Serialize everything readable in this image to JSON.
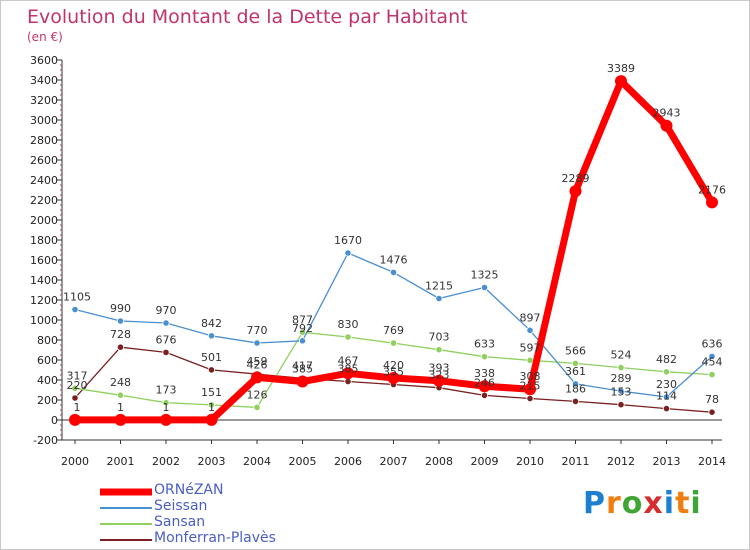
{
  "header": {
    "title": "Evolution du Montant de la Dette par Habitant",
    "unit": "(en €)"
  },
  "logo": {
    "text": "Proxiti",
    "colors": [
      "#1e7fd0",
      "#f07d10",
      "#3fa535",
      "#d62d2d",
      "#1e7fd0",
      "#f07d10",
      "#3fa535"
    ]
  },
  "chart_data": {
    "type": "line",
    "title": "Evolution du Montant de la Dette par Habitant",
    "subtitle": "(en €)",
    "x": [
      "2000",
      "2001",
      "2002",
      "2003",
      "2004",
      "2005",
      "2006",
      "2007",
      "2008",
      "2009",
      "2010",
      "2011",
      "2012",
      "2013",
      "2014"
    ],
    "ylim": [
      -200,
      3600
    ],
    "yticks": [
      -200,
      0,
      200,
      400,
      600,
      800,
      1000,
      1200,
      1400,
      1600,
      1800,
      2000,
      2200,
      2400,
      2600,
      2800,
      3000,
      3200,
      3400,
      3600
    ],
    "grid": false,
    "legend_position": "bottom-left",
    "series": [
      {
        "name": "ORNéZAN",
        "color": "#ff0000",
        "values": [
          1,
          1,
          1,
          1,
          426,
          385,
          467,
          420,
          393,
          338,
          308,
          2289,
          3389,
          2943,
          2176
        ]
      },
      {
        "name": "Seissan",
        "color": "#4a8fd1",
        "values": [
          1105,
          990,
          970,
          842,
          770,
          792,
          1670,
          1476,
          1215,
          1325,
          897,
          361,
          289,
          230,
          636
        ]
      },
      {
        "name": "Sansan",
        "color": "#8fd05f",
        "values": [
          317,
          248,
          173,
          151,
          126,
          877,
          830,
          769,
          703,
          633,
          597,
          566,
          524,
          482,
          454
        ]
      },
      {
        "name": "Monferran-Plavès",
        "color": "#7a2020",
        "values": [
          220,
          728,
          676,
          501,
          459,
          417,
          385,
          355,
          323,
          246,
          215,
          186,
          153,
          114,
          78
        ]
      }
    ]
  }
}
